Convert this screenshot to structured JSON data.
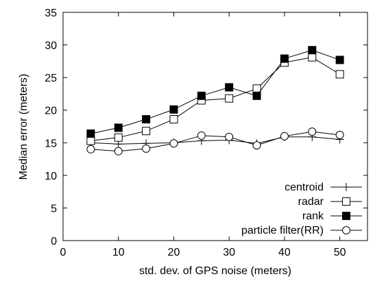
{
  "chart_data": {
    "type": "line",
    "xlabel": "std. dev. of GPS noise (meters)",
    "ylabel": "Median error (meters)",
    "xlim": [
      0,
      55
    ],
    "ylim": [
      0,
      35
    ],
    "xticks": [
      0,
      10,
      20,
      30,
      40,
      50
    ],
    "yticks": [
      0,
      5,
      10,
      15,
      20,
      25,
      30,
      35
    ],
    "grid": false,
    "legend_position": "bottom-right",
    "x": [
      5,
      10,
      15,
      20,
      25,
      30,
      35,
      40,
      45,
      50
    ],
    "series": [
      {
        "name": "centroid",
        "marker": "plus",
        "color": "#000000",
        "values": [
          15.0,
          14.8,
          14.9,
          15.0,
          15.3,
          15.4,
          14.9,
          15.9,
          15.9,
          15.5
        ]
      },
      {
        "name": "radar",
        "marker": "open-square",
        "color": "#000000",
        "values": [
          15.3,
          15.8,
          16.8,
          18.6,
          21.5,
          21.8,
          23.3,
          27.3,
          28.1,
          25.5
        ]
      },
      {
        "name": "rank",
        "marker": "filled-square",
        "color": "#000000",
        "values": [
          16.4,
          17.3,
          18.6,
          20.1,
          22.2,
          23.5,
          22.2,
          27.9,
          29.2,
          27.7
        ]
      },
      {
        "name": "particle filter(RR)",
        "marker": "open-circle",
        "color": "#000000",
        "values": [
          14.0,
          13.7,
          14.1,
          14.9,
          16.1,
          15.9,
          14.6,
          16.0,
          16.7,
          16.2
        ]
      }
    ]
  }
}
